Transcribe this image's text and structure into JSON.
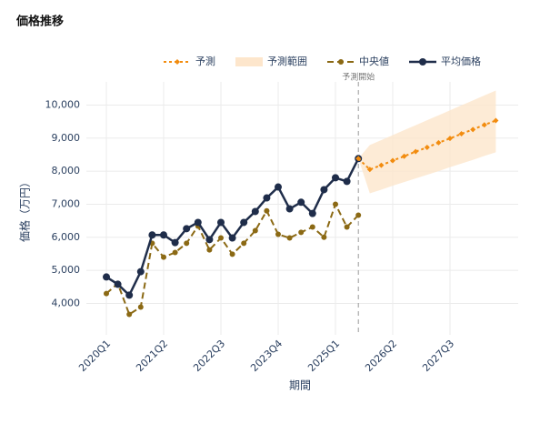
{
  "chart_data": {
    "type": "line",
    "title": "価格推移",
    "x_label": "期間",
    "y_label": "価格（万円）",
    "annotation": "予測開始",
    "categories": [
      "2020Q1",
      null,
      null,
      null,
      null,
      "2021Q2",
      null,
      null,
      null,
      null,
      "2022Q3",
      null,
      null,
      null,
      null,
      "2023Q4",
      null,
      null,
      null,
      null,
      "2025Q1",
      null,
      null,
      null,
      null,
      "2026Q2",
      null,
      null,
      null,
      null,
      "2027Q3",
      null,
      null,
      null,
      null
    ],
    "ylim": [
      3050,
      10700
    ],
    "yticks": [
      {
        "value": 4000,
        "label": "4,000"
      },
      {
        "value": 5000,
        "label": "5,000"
      },
      {
        "value": 6000,
        "label": "6,000"
      },
      {
        "value": 7000,
        "label": "7,000"
      },
      {
        "value": 8000,
        "label": "8,000"
      },
      {
        "value": 9000,
        "label": "9,000"
      },
      {
        "value": 10000,
        "label": "10,000"
      }
    ],
    "grid": true,
    "series": [
      {
        "name": "予測",
        "style": "forecast",
        "color": "#f28c0f",
        "values": [
          null,
          null,
          null,
          null,
          null,
          null,
          null,
          null,
          null,
          null,
          null,
          null,
          null,
          null,
          null,
          null,
          null,
          null,
          null,
          null,
          null,
          null,
          8380,
          8050,
          8180,
          8320,
          8450,
          8590,
          8720,
          8860,
          8990,
          9130,
          9260,
          9400,
          9530
        ]
      },
      {
        "name": "予測範囲",
        "style": "band",
        "color": "#fde6cc",
        "lower": [
          null,
          null,
          null,
          null,
          null,
          null,
          null,
          null,
          null,
          null,
          null,
          null,
          null,
          null,
          null,
          null,
          null,
          null,
          null,
          null,
          null,
          null,
          8380,
          7330,
          7440,
          7560,
          7670,
          7780,
          7890,
          8000,
          8120,
          8230,
          8340,
          8460,
          8570
        ],
        "upper": [
          null,
          null,
          null,
          null,
          null,
          null,
          null,
          null,
          null,
          null,
          null,
          null,
          null,
          null,
          null,
          null,
          null,
          null,
          null,
          null,
          null,
          null,
          8380,
          8790,
          8940,
          9090,
          9240,
          9390,
          9540,
          9690,
          9840,
          9990,
          10140,
          10290,
          10440
        ]
      },
      {
        "name": "中央値",
        "style": "median",
        "color": "#8b6914",
        "values": [
          4300,
          4600,
          3670,
          3890,
          5820,
          5400,
          5540,
          5820,
          6340,
          5620,
          5980,
          5490,
          5820,
          6200,
          6800,
          6090,
          5980,
          6150,
          6310,
          6000,
          7000,
          6310,
          6670,
          null,
          null,
          null,
          null,
          null,
          null,
          null,
          null,
          null,
          null,
          null,
          null
        ]
      },
      {
        "name": "平均価格",
        "style": "average",
        "color": "#1f2d4a",
        "values": [
          4800,
          4580,
          4250,
          4960,
          6070,
          6070,
          5840,
          6260,
          6450,
          5930,
          6450,
          5980,
          6450,
          6780,
          7190,
          7520,
          6860,
          7060,
          6720,
          7440,
          7800,
          7690,
          8380,
          null,
          null,
          null,
          null,
          null,
          null,
          null,
          null,
          null,
          null,
          null,
          null
        ]
      }
    ]
  }
}
